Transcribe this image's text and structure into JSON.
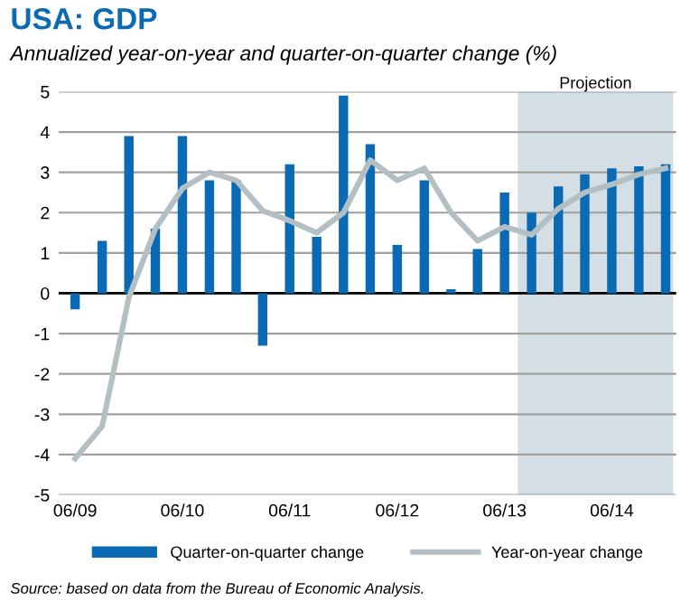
{
  "chart_data": {
    "type": "bar",
    "title": "USA: GDP",
    "subtitle": "Annualized year-on-year and quarter-on-quarter change (%)",
    "x": [
      "2009-06-15",
      "2009-09-15",
      "2009-12-15",
      "2010-03-15",
      "2010-06-15",
      "2010-09-15",
      "2010-12-15",
      "2011-03-15",
      "2011-06-15",
      "2011-09-15",
      "2011-12-15",
      "2012-03-15",
      "2012-06-15",
      "2012-09-15",
      "2012-12-15",
      "2013-03-15",
      "2013-06-15",
      "2013-09-15",
      "2013-12-15",
      "2014-03-15",
      "2014-06-15",
      "2014-09-15",
      "2014-12-15"
    ],
    "series": [
      {
        "name": "Quarter-on-quarter change",
        "color": "#0a6ab4",
        "values": [
          -0.4,
          1.3,
          3.9,
          1.6,
          3.9,
          2.8,
          2.8,
          -1.3,
          3.2,
          1.4,
          4.9,
          3.7,
          1.2,
          2.8,
          0.1,
          1.1,
          2.5,
          2.0,
          2.65,
          2.95,
          3.1,
          3.15,
          3.2
        ]
      },
      {
        "name": "Year-on-year change",
        "type": "line",
        "color": "#b4bfc3",
        "values": [
          -4.1,
          -3.3,
          -0.1,
          1.6,
          2.6,
          3.0,
          2.8,
          2.05,
          1.8,
          1.5,
          2.0,
          3.3,
          2.8,
          3.1,
          2.0,
          1.3,
          1.65,
          1.45,
          2.1,
          2.5,
          2.7,
          2.95,
          3.1
        ]
      }
    ],
    "xlim": [
      "2009-04-20",
      "2015-01-20"
    ],
    "xticks": [
      {
        "value": "2009-06-15",
        "label": "06/09"
      },
      {
        "value": "2010-06-15",
        "label": "06/10"
      },
      {
        "value": "2011-06-15",
        "label": "06/11"
      },
      {
        "value": "2012-06-15",
        "label": "06/12"
      },
      {
        "value": "2013-06-15",
        "label": "06/13"
      },
      {
        "value": "2014-06-15",
        "label": "06/14"
      }
    ],
    "ylim": [
      -5,
      5
    ],
    "yticks": [
      -5,
      -4,
      -3,
      -2,
      -1,
      0,
      1,
      2,
      3,
      4,
      5
    ],
    "grid": "y",
    "ref_lines": [
      {
        "axis": "y",
        "value": 0,
        "color": "#000000"
      }
    ],
    "bands": [
      {
        "axis": "x",
        "from": "2013-07-30",
        "to": "2015-01-10",
        "label": "Projection",
        "color": "#d3dee5"
      }
    ],
    "legend": "bottom",
    "annotations": [
      "Source: based on data from the Bureau of Economic Analysis."
    ]
  }
}
